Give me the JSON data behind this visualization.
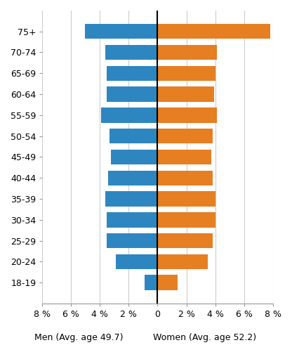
{
  "age_groups": [
    "75+",
    "70-74",
    "65-69",
    "60-64",
    "55-59",
    "50-54",
    "45-49",
    "40-44",
    "35-39",
    "30-34",
    "25-29",
    "20-24",
    "18-19"
  ],
  "men_values": [
    -5.0,
    -3.6,
    -3.5,
    -3.5,
    -3.9,
    -3.3,
    -3.2,
    -3.4,
    -3.6,
    -3.5,
    -3.5,
    -2.9,
    -0.9
  ],
  "women_values": [
    7.8,
    4.1,
    4.0,
    3.9,
    4.1,
    3.8,
    3.7,
    3.8,
    4.0,
    4.0,
    3.8,
    3.5,
    1.4
  ],
  "men_color": "#2E86C1",
  "women_color": "#E67E22",
  "xlim": [
    -8,
    8
  ],
  "xticks": [
    -8,
    -6,
    -4,
    -2,
    0,
    2,
    4,
    6,
    8
  ],
  "xtick_labels": [
    "8 %",
    "6 %",
    "4 %",
    "2 %",
    "0",
    "2 %",
    "4 %",
    "6 %",
    "8 %"
  ],
  "men_label": "Men (Avg. age 49.7)",
  "women_label": "Women (Avg. age 52.2)",
  "grid_color": "#cccccc",
  "background_color": "#ffffff",
  "bar_height": 0.72,
  "label_fontsize": 9.0,
  "tick_fontsize": 9.0
}
